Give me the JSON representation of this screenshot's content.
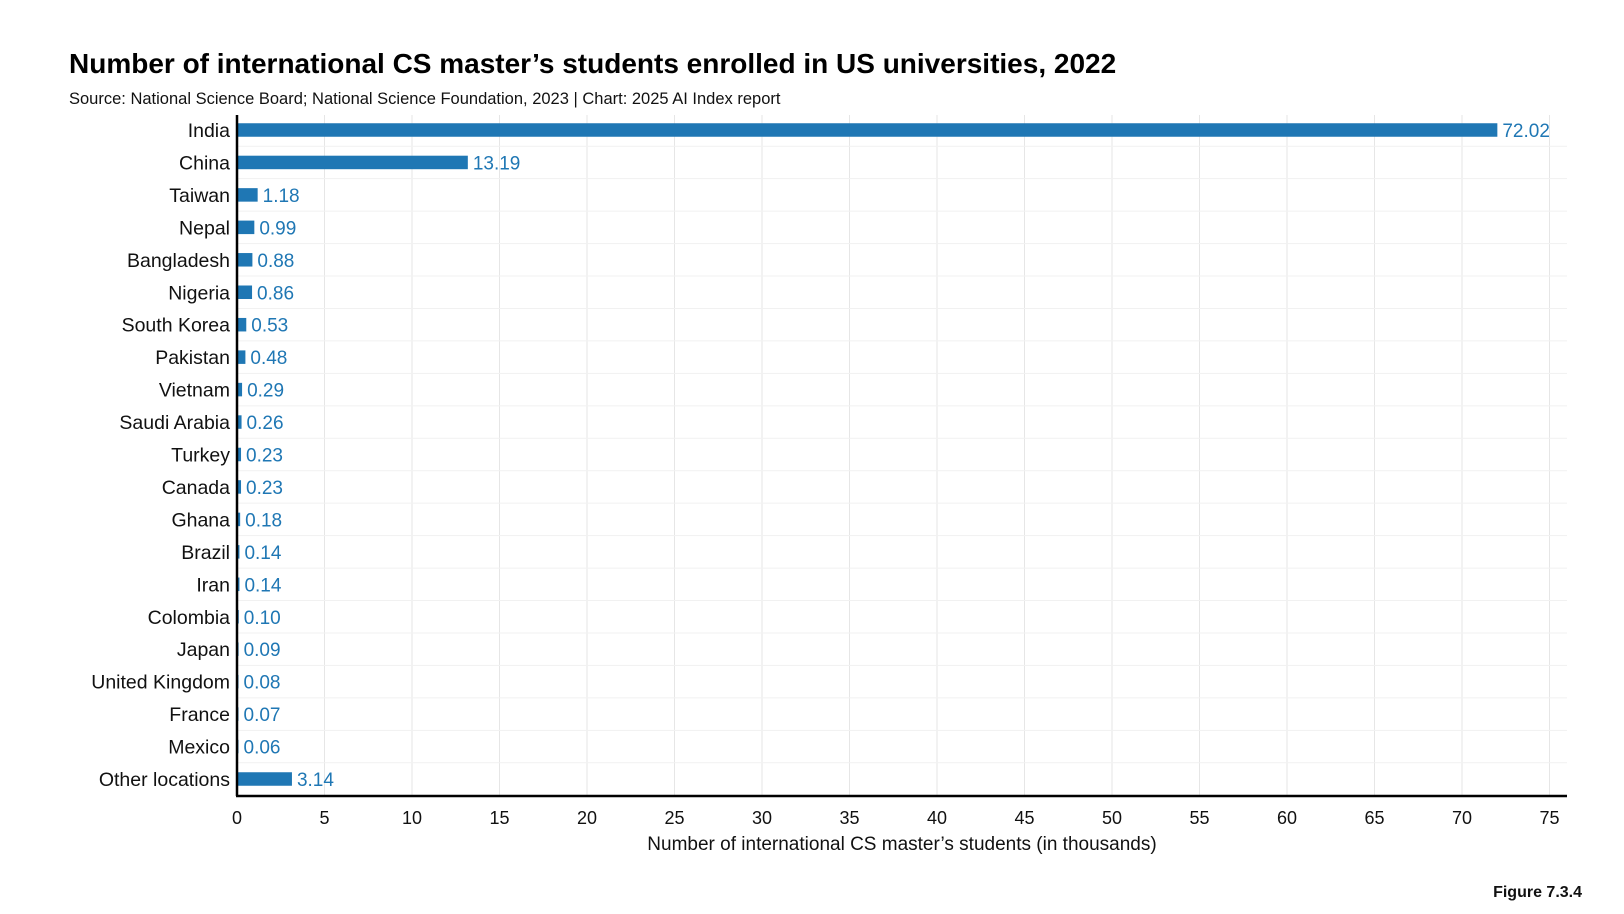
{
  "title": "Number of international CS master’s students enrolled in US universities, 2022",
  "subtitle": "Source: National Science Board; National Science Foundation, 2023 | Chart: 2025 AI Index report",
  "figure_label": "Figure 7.3.4",
  "colors": {
    "bar": "#1f77b4",
    "value_label": "#1f77b4",
    "grid": "#e6e6e6",
    "axis": "#000000"
  },
  "chart_data": {
    "type": "bar",
    "orientation": "horizontal",
    "categories": [
      "India",
      "China",
      "Taiwan",
      "Nepal",
      "Bangladesh",
      "Nigeria",
      "South Korea",
      "Pakistan",
      "Vietnam",
      "Saudi Arabia",
      "Turkey",
      "Canada",
      "Ghana",
      "Brazil",
      "Iran",
      "Colombia",
      "Japan",
      "United Kingdom",
      "France",
      "Mexico",
      "Other locations"
    ],
    "values": [
      72.02,
      13.19,
      1.18,
      0.99,
      0.88,
      0.86,
      0.53,
      0.48,
      0.29,
      0.26,
      0.23,
      0.23,
      0.18,
      0.14,
      0.14,
      0.1,
      0.09,
      0.08,
      0.07,
      0.06,
      3.14
    ],
    "value_labels": [
      "72.02",
      "13.19",
      "1.18",
      "0.99",
      "0.88",
      "0.86",
      "0.53",
      "0.48",
      "0.29",
      "0.26",
      "0.23",
      "0.23",
      "0.18",
      "0.14",
      "0.14",
      "0.10",
      "0.09",
      "0.08",
      "0.07",
      "0.06",
      "3.14"
    ],
    "xlabel": "Number of international CS master’s students (in thousands)",
    "xlim": [
      0,
      76
    ],
    "xticks": [
      0,
      5,
      10,
      15,
      20,
      25,
      30,
      35,
      40,
      45,
      50,
      55,
      60,
      65,
      70,
      75
    ],
    "grid": true
  }
}
